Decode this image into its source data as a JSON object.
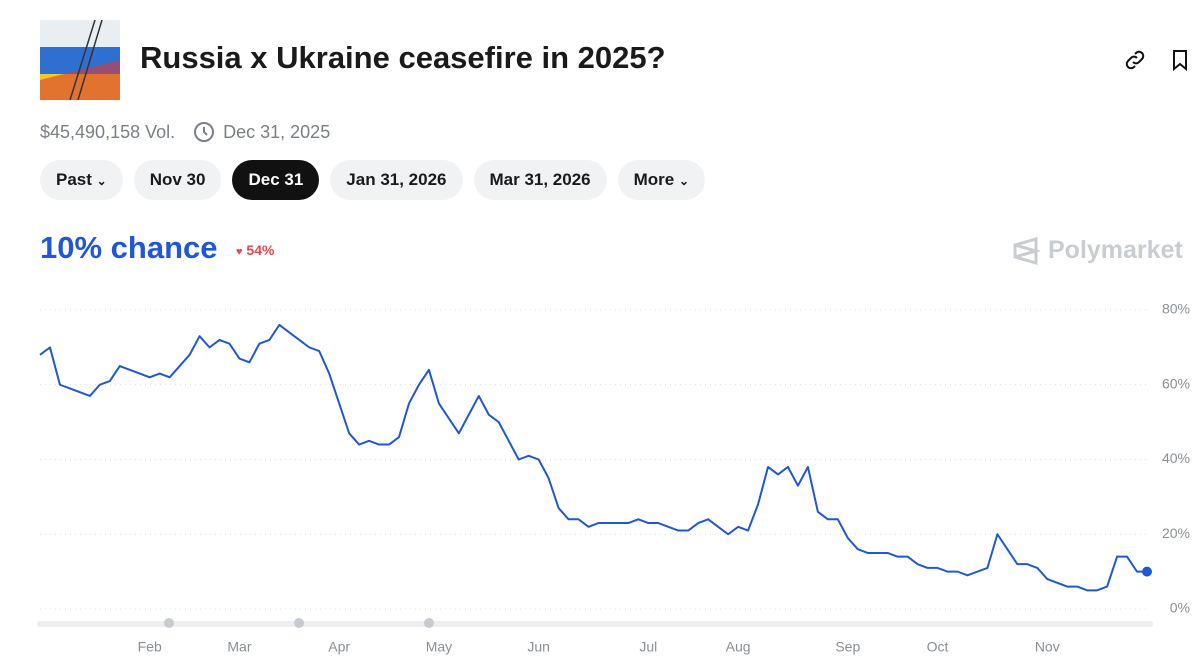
{
  "header": {
    "title": "Russia x Ukraine ceasefire in 2025?",
    "volume": "$45,490,158 Vol.",
    "end_date": "Dec 31, 2025"
  },
  "tabs": [
    "Past",
    "Nov 30",
    "Dec 31",
    "Jan 31, 2026",
    "Mar 31, 2026",
    "More"
  ],
  "chance": "10% chance",
  "change": "54%",
  "brand": "Polymarket",
  "chart_data": {
    "type": "line",
    "color": "#1f57d6",
    "categories": [
      null,
      null,
      null,
      null,
      null,
      null,
      null,
      null,
      null,
      null,
      null,
      "Feb",
      null,
      null,
      null,
      null,
      null,
      null,
      null,
      null,
      "Mar",
      null,
      null,
      null,
      null,
      null,
      null,
      null,
      null,
      null,
      "Apr",
      null,
      null,
      null,
      null,
      null,
      null,
      null,
      null,
      null,
      "May",
      null,
      null,
      null,
      null,
      null,
      null,
      null,
      null,
      null,
      "Jun",
      null,
      null,
      null,
      null,
      null,
      null,
      null,
      null,
      null,
      null,
      "Jul",
      null,
      null,
      null,
      null,
      null,
      null,
      null,
      null,
      "Aug",
      null,
      null,
      null,
      null,
      null,
      null,
      null,
      null,
      null,
      null,
      "Sep",
      null,
      null,
      null,
      null,
      null,
      null,
      null,
      null,
      "Oct",
      null,
      null,
      null,
      null,
      null,
      null,
      null,
      null,
      null,
      null,
      "Nov",
      null,
      null,
      null,
      null,
      null,
      null,
      null,
      null,
      null,
      null
    ],
    "values": [
      68,
      70,
      60,
      59,
      58,
      57,
      60,
      61,
      65,
      64,
      63,
      62,
      63,
      62,
      65,
      68,
      73,
      70,
      72,
      71,
      67,
      66,
      71,
      72,
      76,
      74,
      72,
      70,
      69,
      63,
      55,
      47,
      44,
      45,
      44,
      44,
      46,
      55,
      60,
      64,
      55,
      51,
      47,
      52,
      57,
      52,
      50,
      45,
      40,
      41,
      40,
      35,
      27,
      24,
      24,
      22,
      23,
      23,
      23,
      23,
      24,
      23,
      23,
      22,
      21,
      21,
      23,
      24,
      22,
      20,
      22,
      21,
      28,
      38,
      36,
      38,
      33,
      38,
      26,
      24,
      24,
      19,
      16,
      15,
      15,
      15,
      14,
      14,
      12,
      11,
      11,
      10,
      10,
      9,
      10,
      11,
      20,
      16,
      12,
      12,
      11,
      8,
      7,
      6,
      6,
      5,
      5,
      6,
      14,
      14,
      10,
      10
    ],
    "ylim": [
      0,
      80
    ],
    "yticks": [
      {
        "value": 0,
        "label": "0%"
      },
      {
        "value": 20,
        "label": "20%"
      },
      {
        "value": 40,
        "label": "40%"
      },
      {
        "value": 60,
        "label": "60%"
      },
      {
        "value": 80,
        "label": "80%"
      }
    ],
    "grid": true
  }
}
